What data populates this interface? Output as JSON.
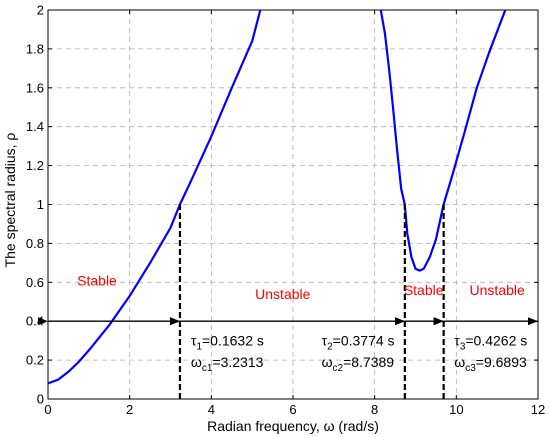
{
  "chart_data": {
    "type": "line",
    "xlabel": "Radian frequency, ω (rad/s)",
    "ylabel": "The spectral radius, ρ",
    "xlim": [
      0,
      12
    ],
    "ylim": [
      0,
      2
    ],
    "x_ticks": [
      "0",
      "2",
      "4",
      "6",
      "8",
      "10",
      "12"
    ],
    "y_ticks": [
      "0",
      "0.2",
      "0.4",
      "0.6",
      "0.8",
      "1",
      "1.2",
      "1.4",
      "1.6",
      "1.8",
      "2"
    ],
    "grid": true,
    "line_color": "#0000ff",
    "series": [
      {
        "segments": [
          [
            [
              0,
              0.08
            ],
            [
              0.25,
              0.1
            ],
            [
              0.5,
              0.14
            ],
            [
              0.75,
              0.19
            ],
            [
              1,
              0.25
            ],
            [
              1.5,
              0.38
            ],
            [
              2,
              0.53
            ],
            [
              2.5,
              0.7
            ],
            [
              3,
              0.88
            ],
            [
              3.2313,
              1.0
            ],
            [
              3.5,
              1.12
            ],
            [
              4,
              1.35
            ],
            [
              4.5,
              1.6
            ],
            [
              5,
              1.84
            ],
            [
              5.2,
              2.0
            ]
          ],
          [
            [
              8.15,
              2.0
            ],
            [
              8.25,
              1.88
            ],
            [
              8.35,
              1.7
            ],
            [
              8.45,
              1.5
            ],
            [
              8.55,
              1.28
            ],
            [
              8.65,
              1.08
            ],
            [
              8.7389,
              1.0
            ],
            [
              8.8,
              0.85
            ],
            [
              8.9,
              0.73
            ],
            [
              9.0,
              0.67
            ],
            [
              9.1,
              0.66
            ],
            [
              9.2,
              0.67
            ],
            [
              9.35,
              0.73
            ],
            [
              9.5,
              0.82
            ],
            [
              9.6893,
              1.0
            ],
            [
              9.9,
              1.15
            ],
            [
              10.2,
              1.37
            ],
            [
              10.5,
              1.6
            ],
            [
              10.8,
              1.78
            ],
            [
              11.2,
              2.0
            ]
          ]
        ]
      }
    ],
    "critical_lines": [
      {
        "x": 3.2313,
        "y_top": 1.0
      },
      {
        "x": 8.7389,
        "y_top": 1.0
      },
      {
        "x": 9.6893,
        "y_top": 1.0
      }
    ],
    "arrow_level": 0.4,
    "regions": [
      {
        "label": "Stable",
        "x": 1.2,
        "y": 0.61,
        "arrow_from": 0,
        "arrow_to": 3.2313
      },
      {
        "label": "Unstable",
        "x": 5.75,
        "y": 0.54,
        "arrow_from": 3.2313,
        "arrow_to": 8.7389
      },
      {
        "label": "Stable",
        "x": 9.2,
        "y": 0.56,
        "arrow_from": 8.7389,
        "arrow_to": 9.6893
      },
      {
        "label": "Unstable",
        "x": 11.0,
        "y": 0.56,
        "arrow_from": 9.6893,
        "arrow_to": 12
      }
    ],
    "annotations": [
      {
        "tau_sym": "τ",
        "tau_sub": "1",
        "tau_val": "=0.1632 s",
        "w_sym": "ω",
        "w_sub": "c1",
        "w_val": "=3.2313",
        "x": 3.5,
        "y_tau": 0.3,
        "y_w": 0.19
      },
      {
        "tau_sym": "τ",
        "tau_sub": "2",
        "tau_val": "=0.3774 s",
        "w_sym": "ω",
        "w_sub": "c2",
        "w_val": "=8.7389",
        "x": 6.7,
        "y_tau": 0.3,
        "y_w": 0.19
      },
      {
        "tau_sym": "τ",
        "tau_sub": "3",
        "tau_val": "=0.4262 s",
        "w_sym": "ω",
        "w_sub": "c3",
        "w_val": "=9.6893",
        "x": 9.95,
        "y_tau": 0.3,
        "y_w": 0.19
      }
    ]
  }
}
